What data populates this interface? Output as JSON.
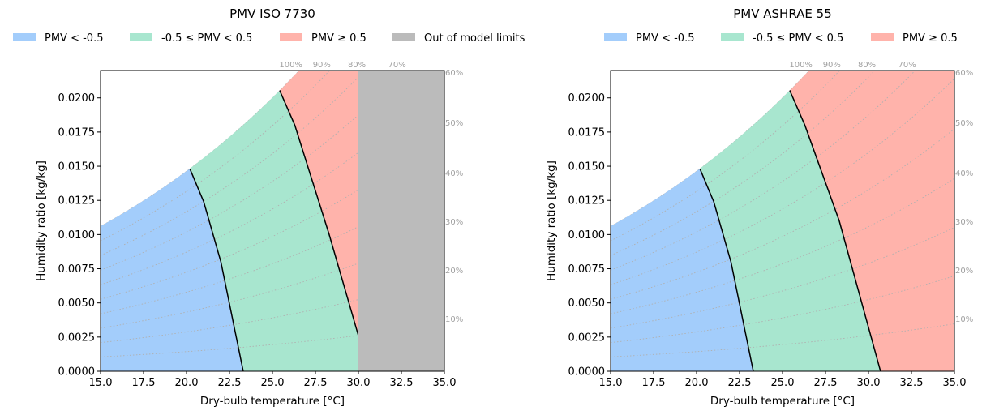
{
  "colors": {
    "cold": "#a3cdfb",
    "neutral": "#a8e6cf",
    "warm": "#ffb3ab",
    "out_of_limits": "#bbbbbb",
    "boundary": "#000000",
    "rh_curve": "#b0b0b0",
    "rh_label": "#a0a0a0"
  },
  "chart_data": [
    {
      "type": "area",
      "title": "PMV ISO 7730",
      "xlabel": "Dry-bulb temperature [°C]",
      "ylabel": "Humidity ratio [kg/kg]",
      "xlim": [
        15,
        35
      ],
      "ylim": [
        0,
        0.022
      ],
      "xticks": [
        "15.0",
        "17.5",
        "20.0",
        "22.5",
        "25.0",
        "27.5",
        "30.0",
        "32.5",
        "35.0"
      ],
      "yticks": [
        "0.0000",
        "0.0025",
        "0.0050",
        "0.0075",
        "0.0100",
        "0.0125",
        "0.0150",
        "0.0175",
        "0.0200"
      ],
      "legend": {
        "placement": "top",
        "entries": [
          {
            "label": "PMV < -0.5",
            "color_key": "cold"
          },
          {
            "label": "-0.5 ≤ PMV < 0.5",
            "color_key": "neutral"
          },
          {
            "label": "PMV ≥ 0.5",
            "color_key": "warm"
          },
          {
            "label": "Out of model limits",
            "color_key": "out_of_limits"
          }
        ]
      },
      "boundaries": [
        {
          "name": "PMV = -0.5",
          "points": [
            [
              20.2,
              0.0148
            ],
            [
              21.0,
              0.0124
            ],
            [
              22.0,
              0.008
            ],
            [
              23.3,
              0.0
            ]
          ]
        },
        {
          "name": "PMV = 0.5",
          "points": [
            [
              25.4,
              0.0206
            ],
            [
              26.3,
              0.018
            ],
            [
              28.3,
              0.01
            ],
            [
              30.0,
              0.0026
            ]
          ]
        }
      ],
      "out_of_limits_x_min": 30.0,
      "rh_curves": [
        {
          "rh": 100,
          "label": "100%"
        },
        {
          "rh": 90,
          "label": "90%"
        },
        {
          "rh": 80,
          "label": "80%"
        },
        {
          "rh": 70,
          "label": "70%"
        },
        {
          "rh": 60,
          "label": "60%"
        },
        {
          "rh": 50,
          "label": "50%"
        },
        {
          "rh": 40,
          "label": "40%"
        },
        {
          "rh": 30,
          "label": "30%"
        },
        {
          "rh": 20,
          "label": "20%"
        },
        {
          "rh": 10,
          "label": "10%"
        }
      ],
      "grid": false
    },
    {
      "type": "area",
      "title": "PMV ASHRAE 55",
      "xlabel": "Dry-bulb temperature [°C]",
      "ylabel": "Humidity ratio [kg/kg]",
      "xlim": [
        15,
        35
      ],
      "ylim": [
        0,
        0.022
      ],
      "xticks": [
        "15.0",
        "17.5",
        "20.0",
        "22.5",
        "25.0",
        "27.5",
        "30.0",
        "32.5",
        "35.0"
      ],
      "yticks": [
        "0.0000",
        "0.0025",
        "0.0050",
        "0.0075",
        "0.0100",
        "0.0125",
        "0.0150",
        "0.0175",
        "0.0200"
      ],
      "legend": {
        "placement": "top",
        "entries": [
          {
            "label": "PMV < -0.5",
            "color_key": "cold"
          },
          {
            "label": "-0.5 ≤ PMV < 0.5",
            "color_key": "neutral"
          },
          {
            "label": "PMV ≥ 0.5",
            "color_key": "warm"
          }
        ]
      },
      "boundaries": [
        {
          "name": "PMV = -0.5",
          "points": [
            [
              20.2,
              0.0148
            ],
            [
              21.0,
              0.0124
            ],
            [
              22.0,
              0.008
            ],
            [
              23.3,
              0.0
            ]
          ]
        },
        {
          "name": "PMV = 0.5",
          "points": [
            [
              25.4,
              0.0206
            ],
            [
              26.3,
              0.018
            ],
            [
              28.3,
              0.011
            ],
            [
              30.7,
              0.0
            ]
          ]
        }
      ],
      "out_of_limits_x_min": null,
      "rh_curves": [
        {
          "rh": 100,
          "label": "100%"
        },
        {
          "rh": 90,
          "label": "90%"
        },
        {
          "rh": 80,
          "label": "80%"
        },
        {
          "rh": 70,
          "label": "70%"
        },
        {
          "rh": 60,
          "label": "60%"
        },
        {
          "rh": 50,
          "label": "50%"
        },
        {
          "rh": 40,
          "label": "40%"
        },
        {
          "rh": 30,
          "label": "30%"
        },
        {
          "rh": 20,
          "label": "20%"
        },
        {
          "rh": 10,
          "label": "10%"
        }
      ],
      "grid": false
    }
  ]
}
